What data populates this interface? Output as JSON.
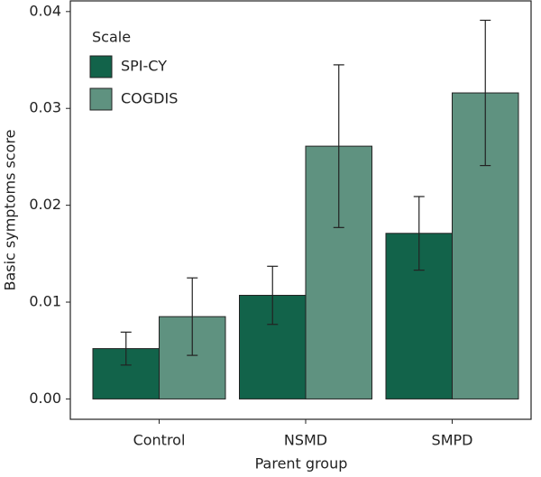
{
  "chart_data": {
    "type": "bar",
    "x_label": "Parent group",
    "y_label": "Basic symptoms score",
    "legend_title": "Scale",
    "legend_position": "upper left",
    "categories": [
      "Control",
      "NSMD",
      "SMPD"
    ],
    "series": [
      {
        "name": "SPI-CY",
        "color": "#12634a",
        "values": [
          0.0052,
          0.0107,
          0.0171
        ],
        "errors": [
          0.0017,
          0.003,
          0.0038
        ]
      },
      {
        "name": "COGDIS",
        "color": "#5f9280",
        "values": [
          0.0085,
          0.0261,
          0.0316
        ],
        "errors": [
          0.004,
          0.0084,
          0.0075
        ]
      }
    ],
    "ylim": [
      -0.0021,
      0.0411
    ],
    "yticks": [
      {
        "value": 0,
        "label": "0.00"
      },
      0.01,
      0.02,
      0.03,
      0.04
    ]
  }
}
